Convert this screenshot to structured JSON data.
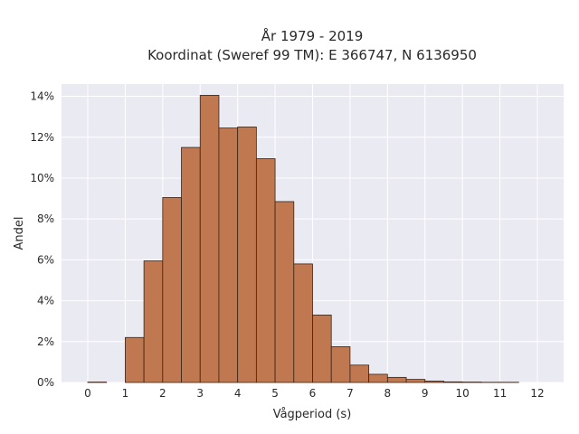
{
  "chart_data": {
    "type": "bar",
    "title_lines": [
      "År 1979 - 2019",
      "Koordinat (Sweref 99 TM): E 366747, N 6136950"
    ],
    "xlabel": "Vågperiod (s)",
    "ylabel": "Andel",
    "xlim": [
      -0.7,
      12.7
    ],
    "ylim": [
      0,
      14.6
    ],
    "x_ticks": [
      0,
      1,
      2,
      3,
      4,
      5,
      6,
      7,
      8,
      9,
      10,
      11,
      12
    ],
    "y_ticks": [
      0,
      2,
      4,
      6,
      8,
      10,
      12,
      14
    ],
    "y_tick_suffix": "%",
    "grid": true,
    "colors": {
      "plot_bg": "#eaeaf2",
      "grid": "#ffffff",
      "bar_fill": "#c07850",
      "bar_edge": "#3a2418"
    },
    "bins": [
      {
        "x0": 0.0,
        "x1": 0.5,
        "value": 0.02
      },
      {
        "x0": 1.0,
        "x1": 1.5,
        "value": 2.2
      },
      {
        "x0": 1.5,
        "x1": 2.0,
        "value": 5.95
      },
      {
        "x0": 2.0,
        "x1": 2.5,
        "value": 9.05
      },
      {
        "x0": 2.5,
        "x1": 3.0,
        "value": 11.5
      },
      {
        "x0": 3.0,
        "x1": 3.5,
        "value": 14.05
      },
      {
        "x0": 3.5,
        "x1": 4.0,
        "value": 12.45
      },
      {
        "x0": 4.0,
        "x1": 4.5,
        "value": 12.5
      },
      {
        "x0": 4.5,
        "x1": 5.0,
        "value": 10.95
      },
      {
        "x0": 5.0,
        "x1": 5.5,
        "value": 8.85
      },
      {
        "x0": 5.5,
        "x1": 6.0,
        "value": 5.8
      },
      {
        "x0": 6.0,
        "x1": 6.5,
        "value": 3.3
      },
      {
        "x0": 6.5,
        "x1": 7.0,
        "value": 1.75
      },
      {
        "x0": 7.0,
        "x1": 7.5,
        "value": 0.85
      },
      {
        "x0": 7.5,
        "x1": 8.0,
        "value": 0.4
      },
      {
        "x0": 8.0,
        "x1": 8.5,
        "value": 0.25
      },
      {
        "x0": 8.5,
        "x1": 9.0,
        "value": 0.15
      },
      {
        "x0": 9.0,
        "x1": 9.5,
        "value": 0.07
      },
      {
        "x0": 9.5,
        "x1": 10.0,
        "value": 0.03
      },
      {
        "x0": 10.0,
        "x1": 10.5,
        "value": 0.02
      },
      {
        "x0": 10.5,
        "x1": 11.0,
        "value": 0.01
      },
      {
        "x0": 11.0,
        "x1": 11.5,
        "value": 0.01
      }
    ]
  }
}
